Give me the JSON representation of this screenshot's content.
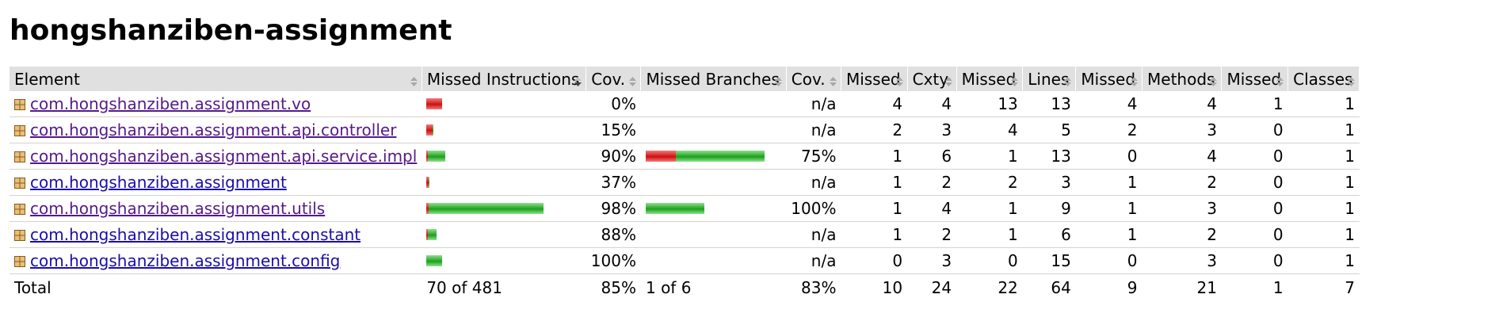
{
  "title": "hongshanziben-assignment",
  "headers": {
    "element": "Element",
    "missed_instructions": "Missed Instructions",
    "cov_instructions": "Cov.",
    "missed_branches": "Missed Branches",
    "cov_branches": "Cov.",
    "missed_cxty": "Missed",
    "cxty": "Cxty",
    "missed_lines": "Missed",
    "lines": "Lines",
    "missed_methods": "Missed",
    "methods": "Methods",
    "missed_classes": "Missed",
    "classes": "Classes"
  },
  "rows": [
    {
      "name": "com.hongshanziben.assignment.vo",
      "visited": true,
      "instr_missed_frac": 1.0,
      "instr_total": 20,
      "instr_cov": "0%",
      "branch_missed_frac": null,
      "branch_total": 0,
      "branch_cov": "n/a",
      "missed_cxty": "4",
      "cxty": "4",
      "missed_lines": "13",
      "lines": "13",
      "missed_methods": "4",
      "methods": "4",
      "missed_classes": "1",
      "classes": "1"
    },
    {
      "name": "com.hongshanziben.assignment.api.controller",
      "visited": true,
      "instr_missed_frac": 0.85,
      "instr_total": 9,
      "instr_cov": "15%",
      "branch_missed_frac": null,
      "branch_total": 0,
      "branch_cov": "n/a",
      "missed_cxty": "2",
      "cxty": "3",
      "missed_lines": "4",
      "lines": "5",
      "missed_methods": "2",
      "methods": "3",
      "missed_classes": "0",
      "classes": "1"
    },
    {
      "name": "com.hongshanziben.assignment.api.service.impl",
      "visited": true,
      "instr_missed_frac": 0.1,
      "instr_total": 24,
      "instr_cov": "90%",
      "branch_missed_frac": 0.25,
      "branch_total": 150,
      "branch_cov": "75%",
      "missed_cxty": "1",
      "cxty": "6",
      "missed_lines": "1",
      "lines": "13",
      "missed_methods": "0",
      "methods": "4",
      "missed_classes": "0",
      "classes": "1"
    },
    {
      "name": "com.hongshanziben.assignment",
      "visited": false,
      "instr_missed_frac": 0.63,
      "instr_total": 4,
      "instr_cov": "37%",
      "branch_missed_frac": null,
      "branch_total": 0,
      "branch_cov": "n/a",
      "missed_cxty": "1",
      "cxty": "2",
      "missed_lines": "2",
      "lines": "3",
      "missed_methods": "1",
      "methods": "2",
      "missed_classes": "0",
      "classes": "1"
    },
    {
      "name": "com.hongshanziben.assignment.utils",
      "visited": true,
      "instr_missed_frac": 0.02,
      "instr_total": 148,
      "instr_cov": "98%",
      "branch_missed_frac": 0.0,
      "branch_total": 74,
      "branch_cov": "100%",
      "missed_cxty": "1",
      "cxty": "4",
      "missed_lines": "1",
      "lines": "9",
      "missed_methods": "1",
      "methods": "3",
      "missed_classes": "0",
      "classes": "1"
    },
    {
      "name": "com.hongshanziben.assignment.constant",
      "visited": false,
      "instr_missed_frac": 0.12,
      "instr_total": 13,
      "instr_cov": "88%",
      "branch_missed_frac": null,
      "branch_total": 0,
      "branch_cov": "n/a",
      "missed_cxty": "1",
      "cxty": "2",
      "missed_lines": "1",
      "lines": "6",
      "missed_methods": "1",
      "methods": "2",
      "missed_classes": "0",
      "classes": "1"
    },
    {
      "name": "com.hongshanziben.assignment.config",
      "visited": false,
      "instr_missed_frac": 0.0,
      "instr_total": 20,
      "instr_cov": "100%",
      "branch_missed_frac": null,
      "branch_total": 0,
      "branch_cov": "n/a",
      "missed_cxty": "0",
      "cxty": "3",
      "missed_lines": "0",
      "lines": "15",
      "missed_methods": "0",
      "methods": "3",
      "missed_classes": "0",
      "classes": "1"
    }
  ],
  "total": {
    "label": "Total",
    "instructions": "70 of 481",
    "instr_cov": "85%",
    "branches": "1 of 6",
    "branch_cov": "83%",
    "missed_cxty": "10",
    "cxty": "24",
    "missed_lines": "22",
    "lines": "64",
    "missed_methods": "9",
    "methods": "21",
    "missed_classes": "1",
    "classes": "7"
  },
  "colors": {
    "header_bg": "#e0e0e0",
    "link": "#1a0dab",
    "visited_link": "#551a8b",
    "bar_red": "#d01010",
    "bar_green": "#1ca01c"
  }
}
